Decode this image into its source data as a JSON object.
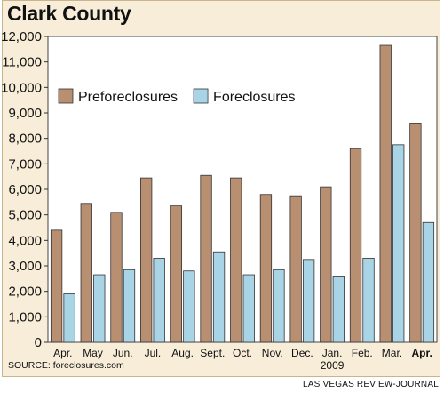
{
  "header": {
    "title": "Clark County"
  },
  "footer": {
    "source": "SOURCE: foreclosures.com",
    "credit": "LAS VEGAS REVIEW-JOURNAL"
  },
  "chart_data": {
    "type": "bar",
    "title": "Clark County",
    "categories": [
      "Apr.",
      "May",
      "Jun.",
      "Jul.",
      "Aug.",
      "Sept.",
      "Oct.",
      "Nov.",
      "Dec.",
      "Jan.",
      "Feb.",
      "Mar.",
      "Apr."
    ],
    "year_label": {
      "text": "2009",
      "under_category_index": 9
    },
    "bold_category_index": 12,
    "series": [
      {
        "name": "Preforeclosures",
        "color": "#b98f72",
        "values": [
          4400,
          5450,
          5100,
          6450,
          5350,
          6550,
          6450,
          5800,
          5750,
          6100,
          7600,
          11650,
          8600
        ]
      },
      {
        "name": "Foreclosures",
        "color": "#a8d4e6",
        "values": [
          1900,
          2650,
          2850,
          3300,
          2800,
          3550,
          2650,
          2850,
          3250,
          2600,
          3300,
          7750,
          4700
        ]
      }
    ],
    "yticks": [
      "0",
      "1,000",
      "2,000",
      "3,000",
      "4,000",
      "5,000",
      "6,000",
      "7,000",
      "8,000",
      "9,000",
      "10,000",
      "11,000",
      "12,000"
    ],
    "ylim": [
      0,
      12000
    ],
    "grid": false,
    "legend_position": "top-left"
  }
}
